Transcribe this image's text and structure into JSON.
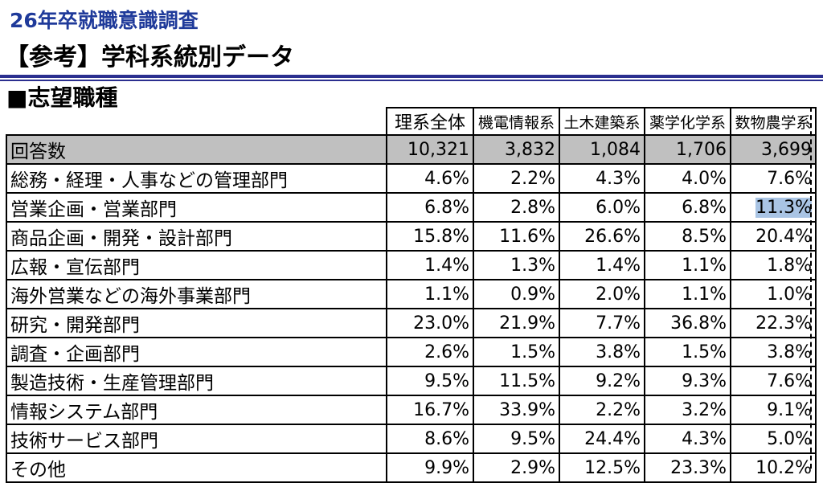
{
  "header": {
    "title": "26年卒就職意識調査",
    "subtitle": "【参考】学科系統別データ",
    "section": "■志望職種"
  },
  "table": {
    "columns": [
      "理系全体",
      "機電情報系",
      "土木建築系",
      "薬学化学系",
      "数物農学系"
    ],
    "rows": [
      {
        "label": "回答数",
        "values": [
          "10,321",
          "3,832",
          "1,084",
          "1,706",
          "3,699"
        ]
      },
      {
        "label": "総務・経理・人事などの管理部門",
        "values": [
          "4.6%",
          "2.2%",
          "4.3%",
          "4.0%",
          "7.6%"
        ]
      },
      {
        "label": "営業企画・営業部門",
        "values": [
          "6.8%",
          "2.8%",
          "6.0%",
          "6.8%",
          "11.3%"
        ]
      },
      {
        "label": "商品企画・開発・設計部門",
        "values": [
          "15.8%",
          "11.6%",
          "26.6%",
          "8.5%",
          "20.4%"
        ]
      },
      {
        "label": "広報・宣伝部門",
        "values": [
          "1.4%",
          "1.3%",
          "1.4%",
          "1.1%",
          "1.8%"
        ]
      },
      {
        "label": "海外営業などの海外事業部門",
        "values": [
          "1.1%",
          "0.9%",
          "2.0%",
          "1.1%",
          "1.0%"
        ]
      },
      {
        "label": "研究・開発部門",
        "values": [
          "23.0%",
          "21.9%",
          "7.7%",
          "36.8%",
          "22.3%"
        ]
      },
      {
        "label": "調査・企画部門",
        "values": [
          "2.6%",
          "1.5%",
          "3.8%",
          "1.5%",
          "3.8%"
        ]
      },
      {
        "label": "製造技術・生産管理部門",
        "values": [
          "9.5%",
          "11.5%",
          "9.2%",
          "9.3%",
          "7.6%"
        ]
      },
      {
        "label": "情報システム部門",
        "values": [
          "16.7%",
          "33.9%",
          "2.2%",
          "3.2%",
          "9.1%"
        ]
      },
      {
        "label": "技術サービス部門",
        "values": [
          "8.6%",
          "9.5%",
          "24.4%",
          "4.3%",
          "5.0%"
        ]
      },
      {
        "label": "その他",
        "values": [
          "9.9%",
          "2.9%",
          "12.5%",
          "23.3%",
          "10.2%"
        ]
      }
    ]
  },
  "colors": {
    "title": "#1f3a9a",
    "rule": "#2b2f8f",
    "count_row_bg": "#c0c0c0",
    "selection_highlight": "#a9c4e4"
  }
}
